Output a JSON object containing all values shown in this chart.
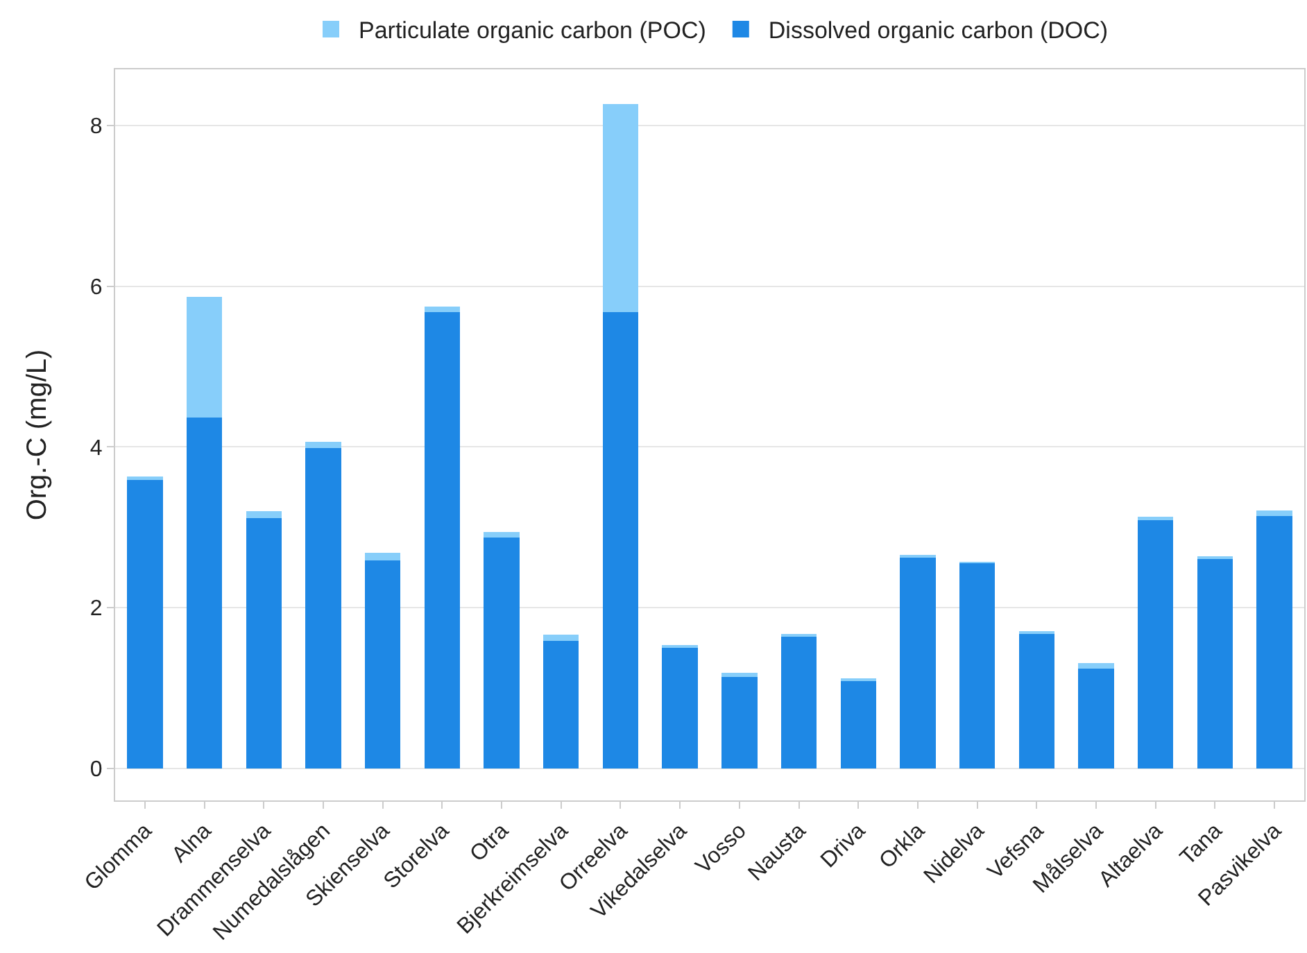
{
  "chart_data": {
    "type": "bar",
    "stacked": true,
    "ylabel": "Org.-C (mg/L)",
    "categories": [
      "Glomma",
      "Alna",
      "Drammenselva",
      "Numedalslågen",
      "Skienselva",
      "Storelva",
      "Otra",
      "Bjerkreimselva",
      "Orreelva",
      "Vikedalselva",
      "Vosso",
      "Nausta",
      "Driva",
      "Orkla",
      "Nidelva",
      "Vefsna",
      "Målselva",
      "Altaelva",
      "Tana",
      "Pasvikelva"
    ],
    "series": [
      {
        "name": "Dissolved organic carbon (DOC)",
        "color": "#1e88e5",
        "values": [
          3.59,
          4.37,
          3.11,
          3.99,
          2.59,
          5.68,
          2.87,
          1.59,
          5.68,
          1.5,
          1.14,
          1.65,
          1.1,
          2.63,
          2.56,
          1.68,
          1.24,
          3.09,
          2.61,
          3.14
        ]
      },
      {
        "name": "Particulate organic carbon (POC)",
        "color": "#87cefa",
        "values": [
          0.04,
          1.5,
          0.09,
          0.07,
          0.09,
          0.07,
          0.07,
          0.07,
          2.59,
          0.02,
          0.05,
          0.01,
          0.01,
          0.01,
          0.01,
          0.01,
          0.07,
          0.04,
          0.03,
          0.07
        ]
      }
    ],
    "ylim": [
      -0.4,
      8.7
    ],
    "yticks": [
      0,
      2,
      4,
      6,
      8
    ],
    "grid": "y",
    "legend": "top"
  }
}
